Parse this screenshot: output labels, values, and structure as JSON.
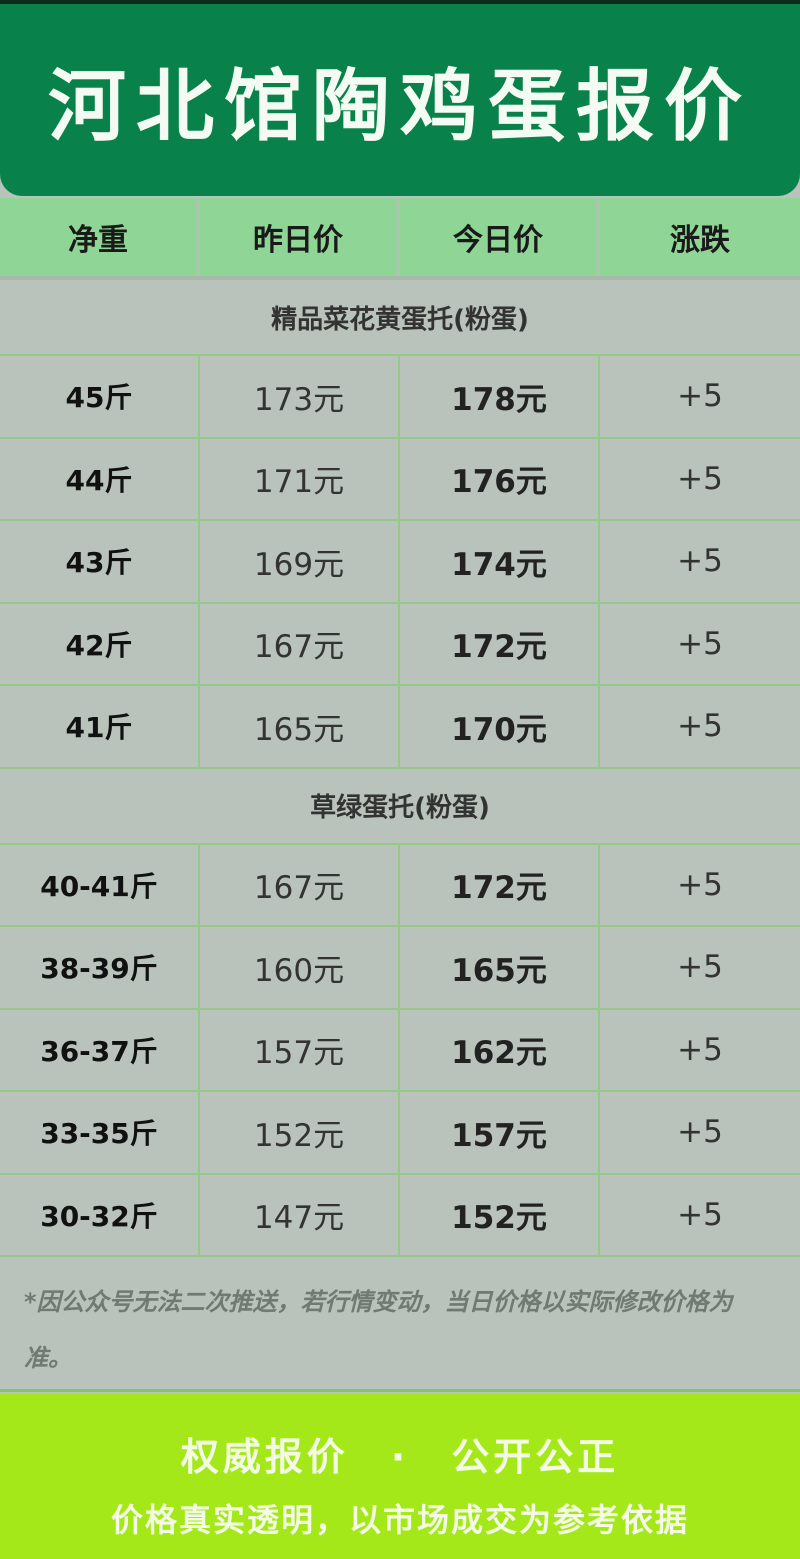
{
  "title": "河北馆陶鸡蛋报价",
  "headers": [
    "净重",
    "昨日价",
    "今日价",
    "涨跌"
  ],
  "sections": [
    {
      "name": "精品菜花黄蛋托(粉蛋)",
      "rows": [
        [
          "45斤",
          "173元",
          "178元",
          "+5"
        ],
        [
          "44斤",
          "171元",
          "176元",
          "+5"
        ],
        [
          "43斤",
          "169元",
          "174元",
          "+5"
        ],
        [
          "42斤",
          "167元",
          "172元",
          "+5"
        ],
        [
          "41斤",
          "165元",
          "170元",
          "+5"
        ]
      ]
    },
    {
      "name": "草绿蛋托(粉蛋)",
      "rows": [
        [
          "40-41斤",
          "167元",
          "172元",
          "+5"
        ],
        [
          "38-39斤",
          "160元",
          "165元",
          "+5"
        ],
        [
          "36-37斤",
          "157元",
          "162元",
          "+5"
        ],
        [
          "33-35斤",
          "152元",
          "157元",
          "+5"
        ],
        [
          "30-32斤",
          "147元",
          "152元",
          "+5"
        ]
      ]
    }
  ],
  "note": "*因公众号无法二次推送，若行情变动，当日价格以实际修改价格为准。",
  "footer": {
    "line1": "权威报价　·　公开公正",
    "line2": "价格真实透明，以市场成交为参考依据"
  },
  "colors": {
    "header": "#08814b",
    "column_header": "#8fd595",
    "footer": "#a5e81a"
  }
}
